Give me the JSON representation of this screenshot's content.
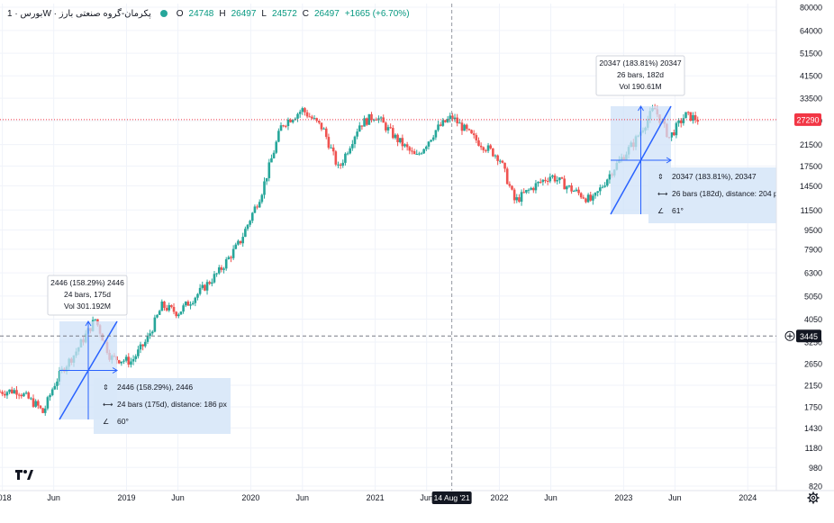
{
  "legend": {
    "symbol": "بورس · 1W · پکرمان-گروه صنعتی بارز",
    "open_label": "O",
    "open": "24748",
    "high_label": "H",
    "high": "26497",
    "low_label": "L",
    "low": "24572",
    "close_label": "C",
    "close": "26497",
    "change": "+1665 (+6.70%)",
    "status_color": "#26a69a"
  },
  "price_axis": {
    "ticks": [
      "80000",
      "64000",
      "51500",
      "41500",
      "33500",
      "27000",
      "21500",
      "17500",
      "14500",
      "11500",
      "9500",
      "7900",
      "6300",
      "5050",
      "4050",
      "3250",
      "2650",
      "2150",
      "1750",
      "1430",
      "1180",
      "980",
      "820"
    ],
    "last_price": "27290",
    "last_price_color": "#f23645",
    "crosshair_price": "3445"
  },
  "time_axis": {
    "ticks": [
      "2018",
      "Jun",
      "2019",
      "Jun",
      "2020",
      "Jun",
      "2021",
      "Jun",
      "2022",
      "Jun",
      "2023",
      "Jun",
      "2024"
    ],
    "crosshair_label": "14 Aug '21"
  },
  "measures": [
    {
      "box_label_1": "2446 (158.29%) 2446",
      "box_label_2": "24 bars, 175d",
      "box_label_3": "Vol 301.192M",
      "info_1": "2446 (158.29%), 2446",
      "info_2": "24 bars (175d), distance: 186 px",
      "info_3": "60°"
    },
    {
      "box_label_1": "20347 (183.81%) 20347",
      "box_label_2": "26 bars, 182d",
      "box_label_3": "Vol 190.61M",
      "info_1": "20347 (183.81%), 20347",
      "info_2": "26 bars (182d), distance: 204 px",
      "info_3": "61°"
    }
  ],
  "colors": {
    "up": "#26a69a",
    "down": "#ef5350",
    "measure_fill": "#cfe2f8",
    "measure_line": "#2962ff"
  },
  "chart_data": {
    "type": "candlestick",
    "scale": "log",
    "ylim": [
      820,
      80000
    ],
    "xlim": [
      "2017-12-25",
      "2024-03-25"
    ],
    "key_points": [
      {
        "date": "2017-12-25",
        "close": 2020
      },
      {
        "date": "2018-02-15",
        "close": 2050
      },
      {
        "date": "2018-04-15",
        "close": 1760
      },
      {
        "date": "2018-05-01",
        "close": 1650
      },
      {
        "date": "2018-06-01",
        "close": 2150
      },
      {
        "date": "2018-07-01",
        "close": 2550
      },
      {
        "date": "2018-08-01",
        "close": 2900
      },
      {
        "date": "2018-10-01",
        "close": 4050
      },
      {
        "date": "2018-11-15",
        "close": 2800
      },
      {
        "date": "2019-01-15",
        "close": 2700
      },
      {
        "date": "2019-03-01",
        "close": 3300
      },
      {
        "date": "2019-04-15",
        "close": 4600
      },
      {
        "date": "2019-06-01",
        "close": 4300
      },
      {
        "date": "2019-08-01",
        "close": 5200
      },
      {
        "date": "2019-10-01",
        "close": 6400
      },
      {
        "date": "2019-12-01",
        "close": 8500
      },
      {
        "date": "2020-02-01",
        "close": 13500
      },
      {
        "date": "2020-04-01",
        "close": 26000
      },
      {
        "date": "2020-06-01",
        "close": 30000
      },
      {
        "date": "2020-08-01",
        "close": 25000
      },
      {
        "date": "2020-09-15",
        "close": 17000
      },
      {
        "date": "2020-11-15",
        "close": 26000
      },
      {
        "date": "2021-01-01",
        "close": 28500
      },
      {
        "date": "2021-03-01",
        "close": 23000
      },
      {
        "date": "2021-05-01",
        "close": 19000
      },
      {
        "date": "2021-07-01",
        "close": 25000
      },
      {
        "date": "2021-08-14",
        "close": 28000
      },
      {
        "date": "2021-10-15",
        "close": 23000
      },
      {
        "date": "2022-01-01",
        "close": 19000
      },
      {
        "date": "2022-02-15",
        "close": 12500
      },
      {
        "date": "2022-04-15",
        "close": 14500
      },
      {
        "date": "2022-06-01",
        "close": 16000
      },
      {
        "date": "2022-08-01",
        "close": 14000
      },
      {
        "date": "2022-10-01",
        "close": 12500
      },
      {
        "date": "2022-12-01",
        "close": 17000
      },
      {
        "date": "2023-02-01",
        "close": 22000
      },
      {
        "date": "2023-04-01",
        "close": 30500
      },
      {
        "date": "2023-05-15",
        "close": 23000
      },
      {
        "date": "2023-07-01",
        "close": 28500
      },
      {
        "date": "2023-08-10",
        "close": 27290
      }
    ]
  }
}
